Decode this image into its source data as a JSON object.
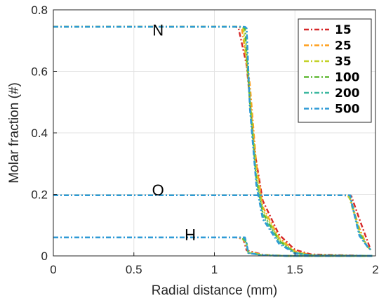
{
  "chart_data": {
    "type": "line",
    "xlabel": "Radial distance (mm)",
    "ylabel": "Molar fraction (#)",
    "xlim": [
      0,
      2
    ],
    "ylim": [
      0,
      0.8
    ],
    "xticks": [
      "0",
      "0.5",
      "1",
      "1.5",
      "2"
    ],
    "yticks": [
      "0",
      "0.2",
      "0.4",
      "0.6",
      "0.8"
    ],
    "grid": true,
    "legend_placement": "top-right",
    "annotations": [
      {
        "text": "N",
        "x": 0.65,
        "y": 0.735
      },
      {
        "text": "O",
        "x": 0.65,
        "y": 0.215
      },
      {
        "text": "H",
        "x": 0.85,
        "y": 0.07
      }
    ],
    "series": [
      {
        "name": "15",
        "color": "#d62728",
        "N": [
          [
            0,
            0.745
          ],
          [
            1.13,
            0.745
          ],
          [
            1.15,
            0.74
          ],
          [
            1.2,
            0.62
          ],
          [
            1.25,
            0.34
          ],
          [
            1.3,
            0.18
          ],
          [
            1.4,
            0.07
          ],
          [
            1.5,
            0.02
          ],
          [
            1.6,
            0.005
          ],
          [
            1.98,
            0.0
          ]
        ],
        "O": [
          [
            0,
            0.197
          ],
          [
            1.8,
            0.197
          ],
          [
            1.85,
            0.195
          ],
          [
            1.9,
            0.12
          ],
          [
            1.97,
            0.02
          ]
        ],
        "H": [
          [
            0,
            0.06
          ],
          [
            1.13,
            0.06
          ],
          [
            1.18,
            0.055
          ],
          [
            1.2,
            0.018
          ],
          [
            1.3,
            0.004
          ],
          [
            1.45,
            0.0
          ],
          [
            1.98,
            0.0
          ]
        ]
      },
      {
        "name": "25",
        "color": "#ff9f1c",
        "N": [
          [
            0,
            0.745
          ],
          [
            1.15,
            0.745
          ],
          [
            1.17,
            0.74
          ],
          [
            1.22,
            0.56
          ],
          [
            1.26,
            0.3
          ],
          [
            1.3,
            0.16
          ],
          [
            1.4,
            0.06
          ],
          [
            1.5,
            0.015
          ],
          [
            1.6,
            0.003
          ],
          [
            1.98,
            0.0
          ]
        ],
        "O": [
          [
            0,
            0.197
          ],
          [
            1.82,
            0.197
          ],
          [
            1.84,
            0.19
          ],
          [
            1.9,
            0.09
          ],
          [
            1.95,
            0.03
          ],
          [
            1.97,
            0.02
          ]
        ],
        "H": [
          [
            0,
            0.06
          ],
          [
            1.15,
            0.06
          ],
          [
            1.19,
            0.05
          ],
          [
            1.21,
            0.014
          ],
          [
            1.3,
            0.003
          ],
          [
            1.45,
            0.0
          ],
          [
            1.98,
            0.0
          ]
        ]
      },
      {
        "name": "35",
        "color": "#c4d22a",
        "N": [
          [
            0,
            0.745
          ],
          [
            1.16,
            0.745
          ],
          [
            1.18,
            0.74
          ],
          [
            1.22,
            0.52
          ],
          [
            1.26,
            0.27
          ],
          [
            1.3,
            0.15
          ],
          [
            1.4,
            0.055
          ],
          [
            1.5,
            0.012
          ],
          [
            1.6,
            0.002
          ],
          [
            1.98,
            0.0
          ]
        ],
        "O": [
          [
            0,
            0.197
          ],
          [
            1.83,
            0.197
          ],
          [
            1.84,
            0.185
          ],
          [
            1.9,
            0.08
          ],
          [
            1.95,
            0.03
          ],
          [
            1.97,
            0.02
          ]
        ],
        "H": [
          [
            0,
            0.06
          ],
          [
            1.16,
            0.06
          ],
          [
            1.19,
            0.048
          ],
          [
            1.21,
            0.012
          ],
          [
            1.3,
            0.003
          ],
          [
            1.45,
            0.0
          ],
          [
            1.98,
            0.0
          ]
        ]
      },
      {
        "name": "100",
        "color": "#5fb832",
        "N": [
          [
            0,
            0.745
          ],
          [
            1.17,
            0.745
          ],
          [
            1.19,
            0.74
          ],
          [
            1.22,
            0.5
          ],
          [
            1.26,
            0.25
          ],
          [
            1.3,
            0.14
          ],
          [
            1.4,
            0.05
          ],
          [
            1.5,
            0.01
          ],
          [
            1.6,
            0.002
          ],
          [
            1.98,
            0.0
          ]
        ],
        "O": [
          [
            0,
            0.197
          ],
          [
            1.84,
            0.197
          ],
          [
            1.85,
            0.18
          ],
          [
            1.9,
            0.075
          ],
          [
            1.95,
            0.03
          ],
          [
            1.97,
            0.02
          ]
        ],
        "H": [
          [
            0,
            0.06
          ],
          [
            1.17,
            0.06
          ],
          [
            1.2,
            0.045
          ],
          [
            1.21,
            0.01
          ],
          [
            1.3,
            0.002
          ],
          [
            1.45,
            0.0
          ],
          [
            1.98,
            0.0
          ]
        ]
      },
      {
        "name": "200",
        "color": "#3cb8a0",
        "N": [
          [
            0,
            0.745
          ],
          [
            1.18,
            0.745
          ],
          [
            1.2,
            0.74
          ],
          [
            1.22,
            0.49
          ],
          [
            1.26,
            0.24
          ],
          [
            1.3,
            0.13
          ],
          [
            1.4,
            0.045
          ],
          [
            1.5,
            0.01
          ],
          [
            1.6,
            0.002
          ],
          [
            1.98,
            0.0
          ]
        ],
        "O": [
          [
            0,
            0.197
          ],
          [
            1.84,
            0.197
          ],
          [
            1.85,
            0.178
          ],
          [
            1.9,
            0.07
          ],
          [
            1.95,
            0.03
          ],
          [
            1.97,
            0.02
          ]
        ],
        "H": [
          [
            0,
            0.06
          ],
          [
            1.18,
            0.06
          ],
          [
            1.2,
            0.042
          ],
          [
            1.21,
            0.01
          ],
          [
            1.3,
            0.002
          ],
          [
            1.45,
            0.0
          ],
          [
            1.98,
            0.0
          ]
        ]
      },
      {
        "name": "500",
        "color": "#2e9ad6",
        "N": [
          [
            0,
            0.745
          ],
          [
            1.19,
            0.745
          ],
          [
            1.2,
            0.74
          ],
          [
            1.22,
            0.48
          ],
          [
            1.26,
            0.23
          ],
          [
            1.3,
            0.12
          ],
          [
            1.4,
            0.04
          ],
          [
            1.5,
            0.008
          ],
          [
            1.6,
            0.001
          ],
          [
            1.98,
            0.0
          ]
        ],
        "O": [
          [
            0,
            0.197
          ],
          [
            1.845,
            0.197
          ],
          [
            1.85,
            0.175
          ],
          [
            1.9,
            0.065
          ],
          [
            1.95,
            0.03
          ],
          [
            1.97,
            0.02
          ]
        ],
        "H": [
          [
            0,
            0.06
          ],
          [
            1.19,
            0.06
          ],
          [
            1.2,
            0.04
          ],
          [
            1.21,
            0.009
          ],
          [
            1.3,
            0.002
          ],
          [
            1.45,
            0.0
          ],
          [
            1.98,
            0.0
          ]
        ]
      }
    ]
  }
}
